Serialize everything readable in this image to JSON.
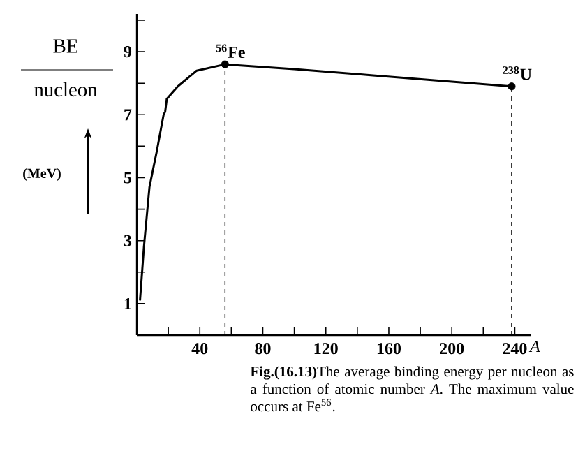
{
  "chart_data": {
    "type": "line",
    "xlabel": "A",
    "x": [
      2,
      4.5,
      8,
      12.5,
      17,
      18,
      19,
      26,
      38,
      56,
      100,
      150,
      200,
      238
    ],
    "series": [
      {
        "color": "#000000",
        "values": [
          1.1,
          2.8,
          4.7,
          5.8,
          7.0,
          7.1,
          7.5,
          7.9,
          8.4,
          8.6,
          8.45,
          8.25,
          8.05,
          7.9
        ]
      },
      {
        "type": "scatter",
        "marker": "circle",
        "color": "#000000",
        "x": [
          56,
          238
        ],
        "values": [
          8.6,
          7.9
        ]
      }
    ],
    "xlim": [
      0,
      250
    ],
    "ylim": [
      0,
      10.2
    ],
    "xticks": [
      {
        "value": 20,
        "label": null
      },
      40,
      {
        "value": 60,
        "label": null
      },
      80,
      {
        "value": 100,
        "label": null
      },
      120,
      {
        "value": 140,
        "label": null
      },
      160,
      {
        "value": 180,
        "label": null
      },
      200,
      {
        "value": 220,
        "label": null
      },
      240
    ],
    "yticks": [
      1,
      {
        "value": 2,
        "label": null
      },
      3,
      {
        "value": 4,
        "label": null
      },
      5,
      {
        "value": 6,
        "label": null
      },
      7,
      {
        "value": 8,
        "label": null
      },
      9,
      {
        "value": 10,
        "label": null
      }
    ],
    "ref_lines": [
      {
        "axis": "x",
        "value": 56,
        "line_style": "dashed"
      },
      {
        "axis": "x",
        "value": 238,
        "line_style": "dashed"
      }
    ],
    "annotations": [
      {
        "text": "$^{56}$Fe",
        "x": 56,
        "y": 8.6
      },
      {
        "text": "$^{238}$U",
        "x": 238,
        "y": 7.9
      },
      "BE",
      "nucleon",
      "(MeV)",
      "**Fig.(16.13)**The average binding energy per nucleon as a function of atomic number *A*. The maximum value occurs at Fe$^{56}$."
    ],
    "grid": false
  }
}
